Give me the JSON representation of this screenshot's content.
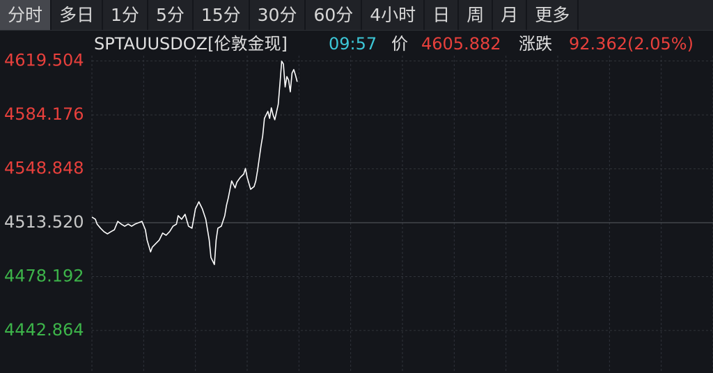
{
  "tabs": [
    "分时",
    "多日",
    "1分",
    "5分",
    "15分",
    "30分",
    "60分",
    "4小时",
    "日",
    "周",
    "月",
    "更多"
  ],
  "active_tab": 0,
  "chart_data": {
    "type": "line",
    "symbol": "SPTAUUSDOZ[伦敦金现]",
    "time": "09:57",
    "price_label": "价",
    "price": 4605.882,
    "change_label": "涨跌",
    "change": "92.362(2.05%)",
    "reference": 4513.52,
    "up_color": "#e8403c",
    "down_color": "#3db54a",
    "flat_color": "#c8c8c8",
    "time_color": "#3cc6d6",
    "grid": true,
    "xlim": [
      0,
      360
    ],
    "xgrid": [
      30,
      60,
      90,
      120,
      150,
      180,
      210,
      240,
      270,
      300,
      330,
      360
    ],
    "ylim": [
      4415.0,
      4623.0
    ],
    "yticks": [
      4619.504,
      4584.176,
      4548.848,
      {
        "value": 4513.52,
        "label": "4513.520"
      },
      4478.192,
      4442.864
    ],
    "series": [
      {
        "name": "price",
        "color": "#ffffff",
        "x": [
          0,
          2,
          3,
          5,
          7,
          9,
          11,
          13,
          15,
          17,
          19,
          21,
          23,
          25,
          27,
          29,
          31,
          32,
          34,
          35,
          37,
          39,
          41,
          43,
          45,
          47,
          49,
          50,
          52,
          54,
          56,
          58,
          60,
          62,
          64,
          66,
          68,
          69,
          71,
          72,
          73,
          75,
          77,
          78,
          79,
          81,
          83,
          84,
          86,
          88,
          89,
          90,
          92,
          94,
          95,
          96,
          98,
          99,
          100,
          102,
          103,
          104,
          105,
          106,
          108,
          109,
          110,
          111,
          112,
          113,
          114,
          115,
          116,
          117,
          118,
          119
        ],
        "values": [
          4517.2,
          4515.8,
          4512.6,
          4509.9,
          4507.6,
          4506.2,
          4507.6,
          4508.9,
          4514.4,
          4512.6,
          4511.2,
          4512.6,
          4511.2,
          4512.6,
          4513.5,
          4514.4,
          4508.9,
          4502.1,
          4494.4,
          4497.5,
          4499.8,
          4502.1,
          4506.7,
          4505.3,
          4507.6,
          4511.2,
          4512.6,
          4518.1,
          4515.8,
          4519.0,
          4511.2,
          4509.9,
          4522.6,
          4527.2,
          4522.6,
          4515.8,
          4502.1,
          4490.7,
          4486.1,
          4502.1,
          4509.9,
          4511.2,
          4518.1,
          4524.9,
          4529.5,
          4540.9,
          4536.3,
          4540.0,
          4543.2,
          4545.4,
          4549.1,
          4543.2,
          4535.4,
          4537.2,
          4540.9,
          4547.7,
          4563.7,
          4570.5,
          4581.9,
          4586.5,
          4581.9,
          4588.8,
          4584.2,
          4581.0,
          4591.1,
          4604.8,
          4619.4,
          4617.5,
          4602.5,
          4609.3,
          4607.0,
          4599.3,
          4611.6,
          4613.9,
          4610.2,
          4605.9
        ]
      }
    ]
  }
}
